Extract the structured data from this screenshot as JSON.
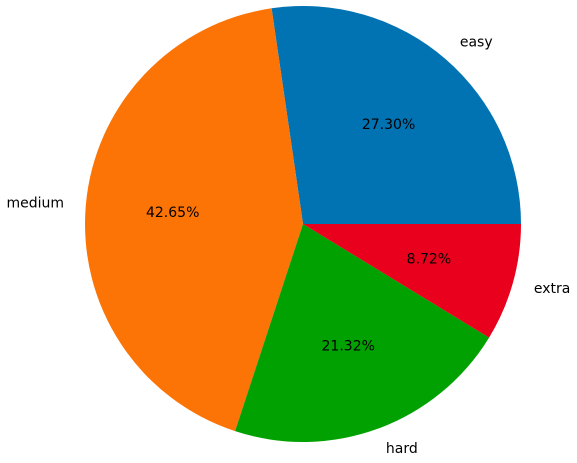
{
  "chart_data": {
    "type": "pie",
    "categories": [
      "easy",
      "medium",
      "hard",
      "extra"
    ],
    "values": [
      27.3,
      42.65,
      21.32,
      8.72
    ],
    "value_labels": [
      "27.30%",
      "42.65%",
      "21.32%",
      "8.72%"
    ],
    "colors": [
      "#0173b2",
      "#fc7405",
      "#02a102",
      "#e8001c"
    ]
  }
}
